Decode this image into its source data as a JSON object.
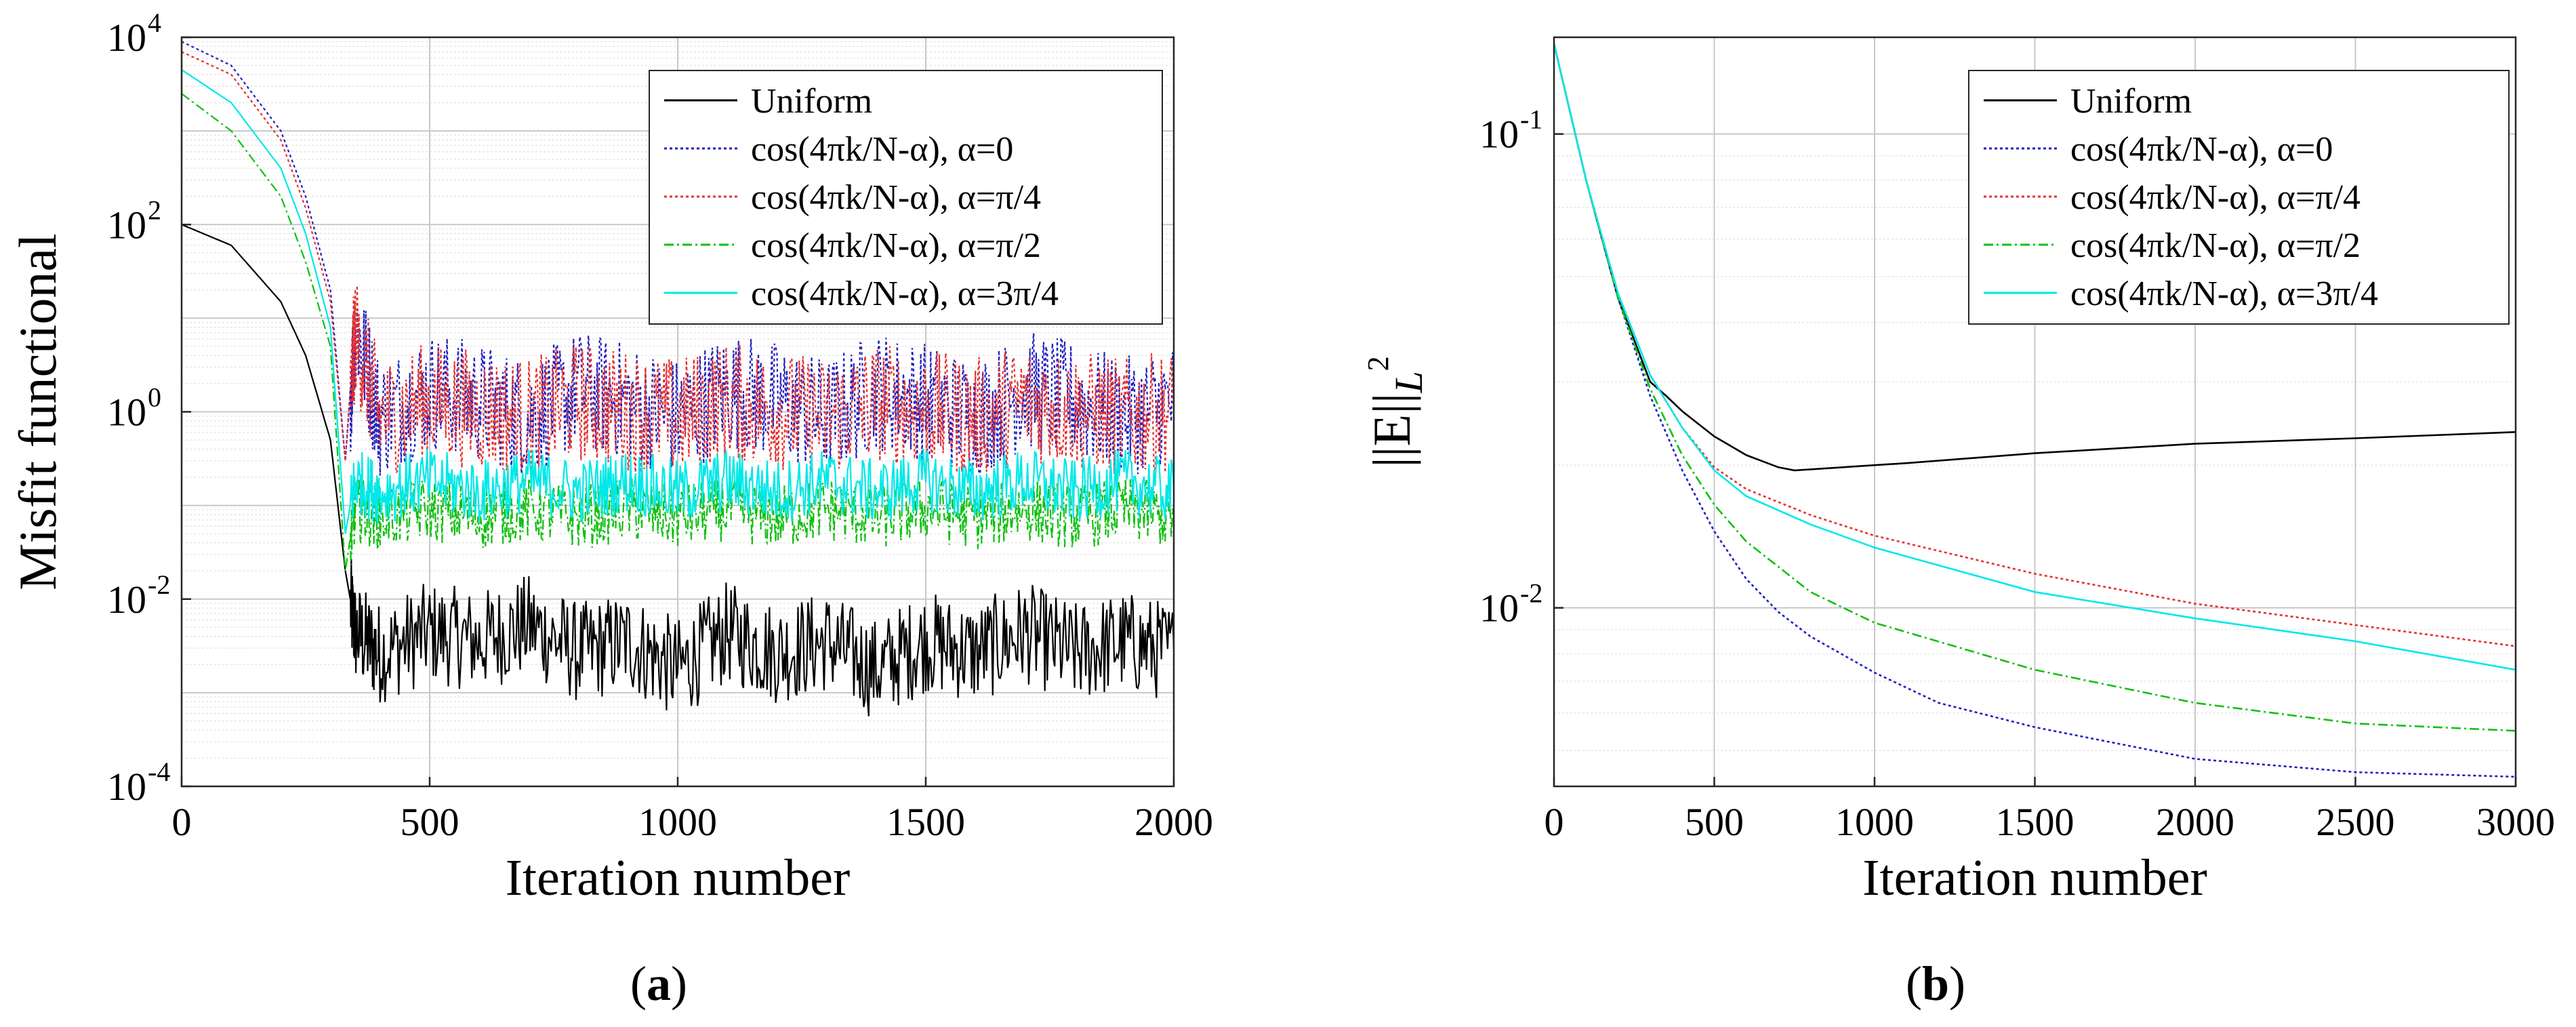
{
  "colors": {
    "uniform": "#000000",
    "alpha0": "#1f1fbf",
    "alpha_pi4": "#e53030",
    "alpha_pi2": "#10c010",
    "alpha_3pi4": "#00e8e8",
    "grid_minor": "#e6e6e6",
    "grid_major": "#c8c8c8"
  },
  "panels": {
    "a": {
      "open": "(",
      "letter": "a",
      "close": ")"
    },
    "b": {
      "open": "(",
      "letter": "b",
      "close": ")"
    }
  },
  "chart_data": [
    {
      "id": "a",
      "type": "line",
      "xlabel": "Iteration number",
      "ylabel": "Misfit functional",
      "yscale": "log",
      "xlim": [
        0,
        2000
      ],
      "ylim": [
        0.0001,
        10000
      ],
      "xticks": [
        "0",
        "500",
        "1000",
        "1500",
        "2000"
      ],
      "yticks": [
        {
          "base": "10",
          "exp": "-4"
        },
        {
          "base": "10",
          "exp": "-2"
        },
        {
          "base": "10",
          "exp": "0"
        },
        {
          "base": "10",
          "exp": "2"
        },
        {
          "base": "10",
          "exp": "4"
        }
      ],
      "grid": true,
      "legend_position": "top-right",
      "series": [
        {
          "name": "Uniform",
          "color_key": "uniform",
          "style": "solid",
          "x": [
            0,
            100,
            200,
            250,
            300,
            330,
            350,
            400,
            500,
            600,
            700,
            800,
            900,
            1000,
            1100,
            1200,
            1300,
            1400,
            1500,
            1600,
            1700,
            1800,
            1900,
            2000
          ],
          "y": [
            100,
            60,
            15,
            4,
            0.5,
            0.02,
            0.005,
            0.003,
            0.005,
            0.004,
            0.006,
            0.003,
            0.004,
            0.002,
            0.005,
            0.003,
            0.004,
            0.002,
            0.004,
            0.003,
            0.005,
            0.003,
            0.004,
            0.003
          ]
        },
        {
          "name": "cos(4πk/N-α), α=0",
          "color_key": "alpha0",
          "style": "dotted",
          "x": [
            0,
            100,
            200,
            250,
            300,
            330,
            350,
            400,
            500,
            600,
            700,
            800,
            900,
            1000,
            1100,
            1200,
            1300,
            1400,
            1500,
            1600,
            1700,
            1800,
            1900,
            2000
          ],
          "y": [
            9000,
            5000,
            1000,
            200,
            20,
            0.3,
            10,
            1,
            2,
            1.5,
            1,
            2,
            1.5,
            1,
            2,
            1.5,
            1,
            2,
            1.5,
            1,
            2,
            1.5,
            1,
            1.5
          ]
        },
        {
          "name": "cos(4πk/N-α), α=π/4",
          "color_key": "alpha_pi4",
          "style": "dotted",
          "x": [
            0,
            100,
            200,
            250,
            300,
            330,
            350,
            400,
            500,
            600,
            700,
            800,
            900,
            1000,
            1100,
            1200,
            1300,
            1400,
            1500,
            1600,
            1700,
            1800,
            1900,
            2000
          ],
          "y": [
            7000,
            4000,
            800,
            150,
            15,
            0.3,
            8,
            1,
            1.5,
            1.2,
            1,
            1.5,
            1.2,
            1,
            1.5,
            1.2,
            1,
            1.5,
            1.2,
            1,
            1.5,
            1.2,
            1,
            1.2
          ]
        },
        {
          "name": "cos(4πk/N-α), α=π/2",
          "color_key": "alpha_pi2",
          "style": "dashdot",
          "x": [
            0,
            100,
            200,
            250,
            300,
            330,
            350,
            400,
            500,
            600,
            700,
            800,
            900,
            1000,
            1100,
            1200,
            1300,
            1400,
            1500,
            1600,
            1700,
            1800,
            1900,
            2000
          ],
          "y": [
            2500,
            1000,
            200,
            40,
            5,
            0.02,
            0.1,
            0.08,
            0.1,
            0.08,
            0.1,
            0.08,
            0.1,
            0.08,
            0.1,
            0.08,
            0.1,
            0.08,
            0.1,
            0.08,
            0.1,
            0.08,
            0.1,
            0.08
          ]
        },
        {
          "name": "cos(4πk/N-α), α=3π/4",
          "color_key": "alpha_3pi4",
          "style": "solid",
          "x": [
            0,
            100,
            200,
            250,
            300,
            330,
            350,
            400,
            500,
            600,
            700,
            800,
            900,
            1000,
            1100,
            1200,
            1300,
            1400,
            1500,
            1600,
            1700,
            1800,
            1900,
            2000
          ],
          "y": [
            4500,
            2000,
            400,
            80,
            8,
            0.05,
            0.2,
            0.15,
            0.2,
            0.15,
            0.2,
            0.15,
            0.2,
            0.15,
            0.2,
            0.15,
            0.2,
            0.15,
            0.2,
            0.15,
            0.2,
            0.15,
            0.2,
            0.15
          ]
        }
      ]
    },
    {
      "id": "b",
      "type": "line",
      "xlabel": "Iteration number",
      "ylabel": "||E||",
      "ylabel_sub": "L",
      "ylabel_sup": "2",
      "yscale": "log",
      "xlim": [
        0,
        3000
      ],
      "ylim": [
        0.0042,
        0.16
      ],
      "xticks": [
        "0",
        "500",
        "1000",
        "1500",
        "2000",
        "2500",
        "3000"
      ],
      "yticks": [
        {
          "base": "10",
          "exp": "-2"
        },
        {
          "base": "10",
          "exp": "-1"
        }
      ],
      "grid": true,
      "legend_position": "top-right",
      "series": [
        {
          "name": "Uniform",
          "color_key": "uniform",
          "style": "solid",
          "x": [
            0,
            100,
            200,
            300,
            350,
            400,
            500,
            600,
            700,
            750,
            800,
            900,
            1000,
            1100,
            1500,
            2000,
            2500,
            3000
          ],
          "y": [
            0.155,
            0.08,
            0.045,
            0.03,
            0.028,
            0.026,
            0.023,
            0.021,
            0.0198,
            0.0195,
            0.0196,
            0.0198,
            0.02,
            0.0202,
            0.0212,
            0.0222,
            0.0228,
            0.0235
          ]
        },
        {
          "name": "cos(4πk/N-α), α=0",
          "color_key": "alpha0",
          "style": "dotted",
          "x": [
            0,
            100,
            200,
            300,
            400,
            500,
            600,
            700,
            800,
            1000,
            1200,
            1500,
            2000,
            2500,
            3000
          ],
          "y": [
            0.155,
            0.08,
            0.045,
            0.028,
            0.0195,
            0.0145,
            0.0115,
            0.0098,
            0.0087,
            0.0073,
            0.0063,
            0.0056,
            0.0048,
            0.0045,
            0.0044
          ]
        },
        {
          "name": "cos(4πk/N-α), α=π/4",
          "color_key": "alpha_pi4",
          "style": "dotted",
          "x": [
            0,
            100,
            200,
            300,
            400,
            500,
            600,
            800,
            1000,
            1500,
            2000,
            2500,
            3000
          ],
          "y": [
            0.155,
            0.08,
            0.046,
            0.031,
            0.024,
            0.0198,
            0.0178,
            0.0157,
            0.0142,
            0.0118,
            0.0102,
            0.0092,
            0.0083
          ]
        },
        {
          "name": "cos(4πk/N-α), α=π/2",
          "color_key": "alpha_pi2",
          "style": "dashdot",
          "x": [
            0,
            100,
            200,
            300,
            400,
            500,
            600,
            800,
            1000,
            1500,
            2000,
            2500,
            3000
          ],
          "y": [
            0.155,
            0.08,
            0.045,
            0.029,
            0.021,
            0.0165,
            0.0138,
            0.0108,
            0.0093,
            0.0074,
            0.0063,
            0.0057,
            0.0055
          ]
        },
        {
          "name": "cos(4πk/N-α), α=3π/4",
          "color_key": "alpha_3pi4",
          "style": "solid",
          "x": [
            0,
            100,
            200,
            300,
            400,
            500,
            600,
            800,
            1000,
            1500,
            2000,
            2500,
            3000
          ],
          "y": [
            0.155,
            0.08,
            0.046,
            0.031,
            0.024,
            0.0195,
            0.0172,
            0.015,
            0.0134,
            0.0108,
            0.0095,
            0.0085,
            0.0074
          ]
        }
      ]
    }
  ]
}
